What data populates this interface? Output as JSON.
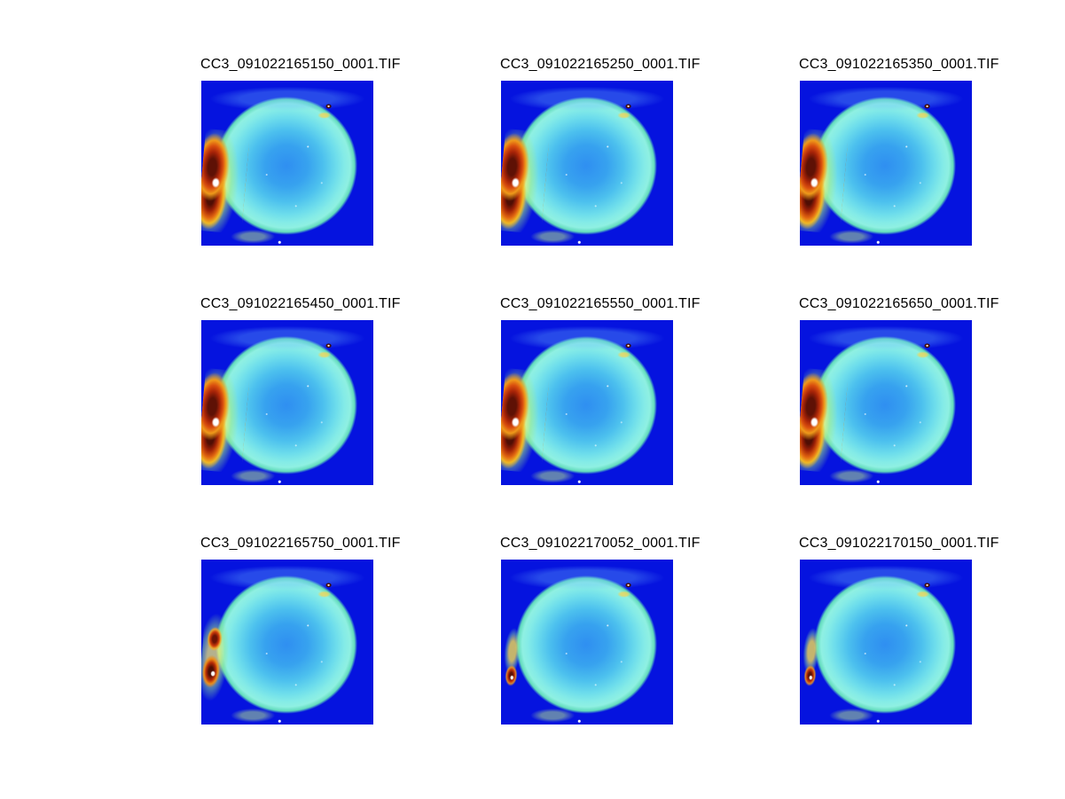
{
  "figure": {
    "background": "#ffffff",
    "images": [
      {
        "title": "CC3_091022165150_0001.TIF",
        "hotspot": "strong"
      },
      {
        "title": "CC3_091022165250_0001.TIF",
        "hotspot": "strong"
      },
      {
        "title": "CC3_091022165350_0001.TIF",
        "hotspot": "strong"
      },
      {
        "title": "CC3_091022165450_0001.TIF",
        "hotspot": "strong"
      },
      {
        "title": "CC3_091022165550_0001.TIF",
        "hotspot": "strong"
      },
      {
        "title": "CC3_091022165650_0001.TIF",
        "hotspot": "strong"
      },
      {
        "title": "CC3_091022165750_0001.TIF",
        "hotspot": "weak"
      },
      {
        "title": "CC3_091022170052_0001.TIF",
        "hotspot": "faint"
      },
      {
        "title": "CC3_091022170150_0001.TIF",
        "hotspot": "faint"
      }
    ]
  },
  "chart_data": {
    "type": "heatmap",
    "layout": {
      "rows": 3,
      "cols": 3,
      "legend": "none",
      "grid": "off",
      "axes": "hidden"
    },
    "colormap": "jet",
    "subplot_titles": [
      "CC3_091022165150_0001.TIF",
      "CC3_091022165250_0001.TIF",
      "CC3_091022165350_0001.TIF",
      "CC3_091022165450_0001.TIF",
      "CC3_091022165550_0001.TIF",
      "CC3_091022165650_0001.TIF",
      "CC3_091022165750_0001.TIF",
      "CC3_091022170052_0001.TIF",
      "CC3_091022170150_0001.TIF"
    ]
  },
  "palette": {
    "image_background": "#0513df",
    "blob_center": "#2f8ff1",
    "blob_edge": "#84ebe7",
    "rim_green": "#63dcbc",
    "hot_yellow": "#f0b824",
    "hot_orange": "#e06410",
    "hot_red": "#a82408",
    "hot_dark_red": "#4f0e04",
    "speck_white": "#ffffff"
  }
}
